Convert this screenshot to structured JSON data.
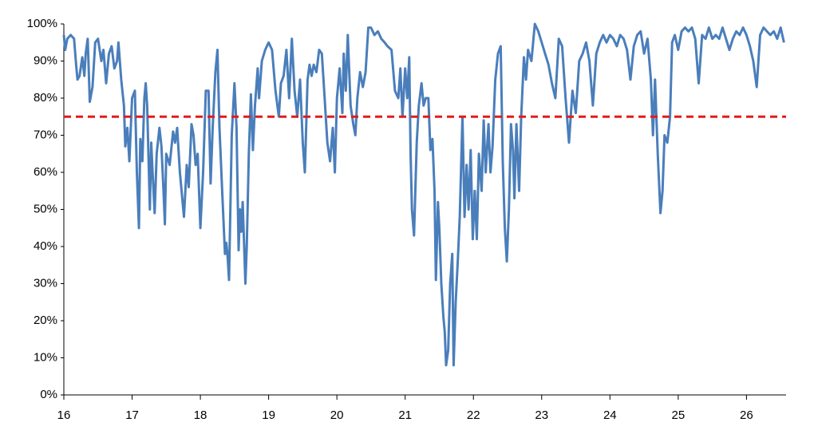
{
  "chart_data": {
    "type": "line",
    "x": [
      16.0,
      16.02,
      16.05,
      16.1,
      16.15,
      16.18,
      16.2,
      16.23,
      16.27,
      16.3,
      16.32,
      16.35,
      16.38,
      16.42,
      16.46,
      16.5,
      16.55,
      16.58,
      16.62,
      16.66,
      16.7,
      16.74,
      16.78,
      16.8,
      16.84,
      16.88,
      16.9,
      16.93,
      16.96,
      17.0,
      17.04,
      17.07,
      17.1,
      17.12,
      17.15,
      17.18,
      17.2,
      17.22,
      17.26,
      17.28,
      17.3,
      17.33,
      17.36,
      17.4,
      17.43,
      17.46,
      17.48,
      17.5,
      17.55,
      17.6,
      17.63,
      17.66,
      17.7,
      17.74,
      17.76,
      17.8,
      17.83,
      17.87,
      17.9,
      17.93,
      17.96,
      18.0,
      18.04,
      18.08,
      18.12,
      18.15,
      18.18,
      18.22,
      18.25,
      18.28,
      18.32,
      18.36,
      18.38,
      18.4,
      18.42,
      18.46,
      18.5,
      18.53,
      18.56,
      18.58,
      18.6,
      18.62,
      18.66,
      18.68,
      18.71,
      18.74,
      18.77,
      18.8,
      18.84,
      18.86,
      18.9,
      18.95,
      19.0,
      19.05,
      19.1,
      19.15,
      19.18,
      19.22,
      19.26,
      19.3,
      19.34,
      19.38,
      19.42,
      19.46,
      19.5,
      19.53,
      19.57,
      19.6,
      19.63,
      19.66,
      19.7,
      19.74,
      19.78,
      19.82,
      19.86,
      19.9,
      19.94,
      19.97,
      20.0,
      20.04,
      20.08,
      20.1,
      20.13,
      20.16,
      20.2,
      20.24,
      20.27,
      20.3,
      20.34,
      20.38,
      20.42,
      20.46,
      20.5,
      20.55,
      20.6,
      20.65,
      20.7,
      20.74,
      20.8,
      20.85,
      20.9,
      20.93,
      20.96,
      21.0,
      21.03,
      21.06,
      21.08,
      21.1,
      21.13,
      21.17,
      21.2,
      21.24,
      21.27,
      21.3,
      21.34,
      21.37,
      21.4,
      21.43,
      21.45,
      21.48,
      21.5,
      21.53,
      21.56,
      21.58,
      21.6,
      21.63,
      21.66,
      21.69,
      21.71,
      21.74,
      21.77,
      21.8,
      21.84,
      21.87,
      21.9,
      21.93,
      21.96,
      21.99,
      22.02,
      22.05,
      22.08,
      22.12,
      22.15,
      22.18,
      22.22,
      22.25,
      22.28,
      22.32,
      22.36,
      22.4,
      22.43,
      22.46,
      22.49,
      22.52,
      22.55,
      22.58,
      22.6,
      22.63,
      22.67,
      22.7,
      22.74,
      22.77,
      22.8,
      22.85,
      22.9,
      22.95,
      23.0,
      23.05,
      23.1,
      23.15,
      23.2,
      23.25,
      23.3,
      23.35,
      23.4,
      23.45,
      23.5,
      23.55,
      23.6,
      23.65,
      23.7,
      23.75,
      23.8,
      23.85,
      23.9,
      23.95,
      24.0,
      24.05,
      24.1,
      24.15,
      24.2,
      24.25,
      24.3,
      24.35,
      24.4,
      24.45,
      24.5,
      24.55,
      24.6,
      24.63,
      24.66,
      24.7,
      24.74,
      24.77,
      24.8,
      24.84,
      24.88,
      24.91,
      24.95,
      25.0,
      25.05,
      25.1,
      25.15,
      25.2,
      25.25,
      25.3,
      25.35,
      25.4,
      25.45,
      25.5,
      25.55,
      25.6,
      25.65,
      25.7,
      25.75,
      25.8,
      25.85,
      25.9,
      25.95,
      26.0,
      26.05,
      26.1,
      26.15,
      26.2,
      26.25,
      26.3,
      26.35,
      26.4,
      26.45,
      26.5,
      26.55
    ],
    "series": [
      {
        "color": "#4a7ebb",
        "values": [
          97,
          93,
          96,
          97,
          96,
          89,
          85,
          86,
          91,
          86,
          92,
          96,
          79,
          83,
          95,
          96,
          90,
          93,
          84,
          92,
          94,
          88,
          90,
          95,
          85,
          78,
          67,
          72,
          63,
          80,
          82,
          60,
          45,
          69,
          63,
          80,
          84,
          78,
          50,
          68,
          60,
          49,
          65,
          72,
          67,
          55,
          46,
          65,
          62,
          71,
          68,
          72,
          60,
          52,
          48,
          62,
          56,
          73,
          70,
          62,
          65,
          45,
          60,
          82,
          82,
          57,
          72,
          87,
          93,
          72,
          55,
          38,
          41,
          37,
          31,
          70,
          84,
          72,
          39,
          50,
          44,
          52,
          30,
          40,
          65,
          81,
          66,
          78,
          88,
          80,
          90,
          93,
          95,
          93,
          82,
          75,
          84,
          86,
          93,
          80,
          96,
          82,
          75,
          85,
          68,
          60,
          85,
          89,
          86,
          89,
          87,
          93,
          92,
          80,
          68,
          63,
          72,
          60,
          80,
          88,
          76,
          92,
          82,
          97,
          78,
          73,
          70,
          80,
          87,
          83,
          87,
          99,
          99,
          97,
          98,
          96,
          95,
          94,
          93,
          82,
          80,
          88,
          75,
          88,
          80,
          91,
          65,
          50,
          43,
          68,
          78,
          84,
          78,
          80,
          80,
          66,
          69,
          55,
          31,
          52,
          45,
          30,
          21,
          17,
          8,
          12,
          30,
          38,
          8,
          25,
          36,
          48,
          75,
          48,
          62,
          50,
          66,
          42,
          55,
          42,
          65,
          55,
          74,
          60,
          73,
          60,
          67,
          85,
          92,
          94,
          63,
          45,
          36,
          50,
          73,
          66,
          53,
          73,
          55,
          75,
          91,
          85,
          93,
          90,
          100,
          98,
          95,
          92,
          89,
          84,
          80,
          96,
          94,
          80,
          68,
          82,
          76,
          90,
          92,
          95,
          90,
          78,
          92,
          95,
          97,
          95,
          97,
          96,
          94,
          97,
          96,
          93,
          85,
          94,
          97,
          98,
          92,
          96,
          85,
          70,
          85,
          65,
          49,
          55,
          70,
          68,
          75,
          95,
          97,
          93,
          98,
          99,
          98,
          99,
          96,
          84,
          97,
          96,
          99,
          96,
          97,
          96,
          99,
          96,
          93,
          96,
          98,
          97,
          99,
          97,
          94,
          90,
          83,
          97,
          99,
          98,
          97,
          98,
          96,
          99,
          95
        ]
      }
    ],
    "hline": 75,
    "hline_color": "#e41a1c",
    "xlim": [
      16,
      26.58
    ],
    "xticks": [
      16,
      17,
      18,
      19,
      20,
      21,
      22,
      23,
      24,
      25,
      26
    ],
    "ylim": [
      0,
      100
    ],
    "yticks": [
      {
        "value": 0,
        "label": "0%"
      },
      {
        "value": 10,
        "label": "10%"
      },
      {
        "value": 20,
        "label": "20%"
      },
      {
        "value": 30,
        "label": "30%"
      },
      {
        "value": 40,
        "label": "40%"
      },
      {
        "value": 50,
        "label": "50%"
      },
      {
        "value": 60,
        "label": "60%"
      },
      {
        "value": 70,
        "label": "70%"
      },
      {
        "value": 80,
        "label": "80%"
      },
      {
        "value": 90,
        "label": "90%"
      },
      {
        "value": 100,
        "label": "100%"
      }
    ],
    "grid": false
  }
}
